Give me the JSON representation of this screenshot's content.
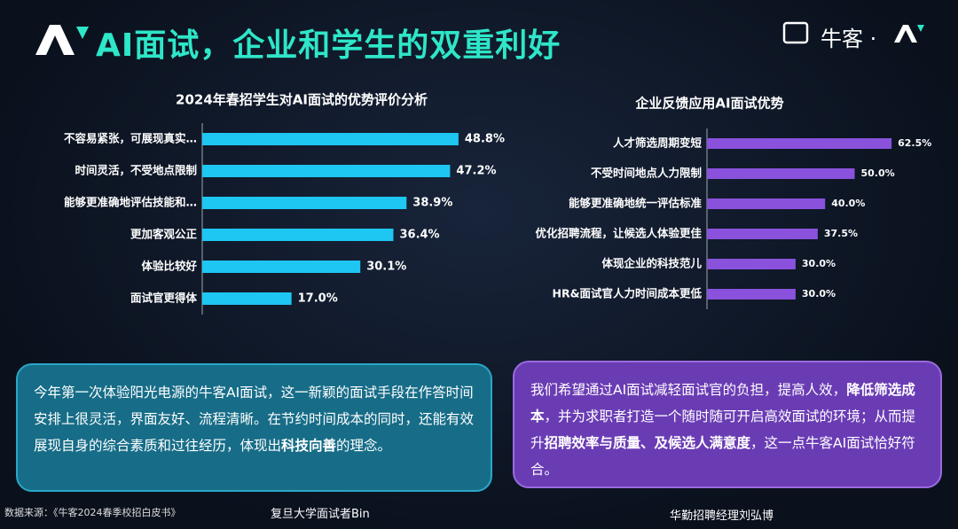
{
  "header": {
    "title": "AI面试，企业和学生的双重利好",
    "brand": "牛客 ·"
  },
  "chart_data": [
    {
      "type": "bar",
      "orientation": "horizontal",
      "title": "2024年春招学生对AI面试的优势评价分析",
      "color": "#1ec6f2",
      "categories": [
        "不容易紧张，可展现真实…",
        "时间灵活，不受地点限制",
        "能够更准确地评估技能和…",
        "更加客观公正",
        "体验比较好",
        "面试官更得体"
      ],
      "values": [
        48.8,
        47.2,
        38.9,
        36.4,
        30.1,
        17.0
      ],
      "value_labels": [
        "48.8%",
        "47.2%",
        "38.9%",
        "36.4%",
        "30.1%",
        "17.0%"
      ]
    },
    {
      "type": "bar",
      "orientation": "horizontal",
      "title": "企业反馈应用AI面试优势",
      "color": "#8a52dc",
      "categories": [
        "人才筛选周期变短",
        "不受时间地点人力限制",
        "能够更准确地统一评估标准",
        "优化招聘流程，让候选人体验更佳",
        "体现企业的科技范儿",
        "HR&面试官人力时间成本更低"
      ],
      "values": [
        62.5,
        50.0,
        40.0,
        37.5,
        30.0,
        30.0
      ],
      "value_labels": [
        "62.5%",
        "50.0%",
        "40.0%",
        "37.5%",
        "30.0%",
        "30.0%"
      ]
    }
  ],
  "quotes": [
    {
      "parts": [
        {
          "text": "今年第一次体验阳光电源的牛客AI面试，这一新颖的面试手段在作答时间安排上很灵活，界面友好、流程清晰。在节约时间成本的同时，还能有效展现自身的综合素质和过往经历，体现出",
          "bold": false
        },
        {
          "text": "科技向善",
          "bold": true
        },
        {
          "text": "的理念。",
          "bold": false
        }
      ],
      "author": "复旦大学面试者Bin"
    },
    {
      "parts": [
        {
          "text": "我们希望通过AI面试减轻面试官的负担，提高人效，",
          "bold": false
        },
        {
          "text": "降低筛选成本",
          "bold": true
        },
        {
          "text": "，并为求职者打造一个随时随可开启高效面试的环境；从而提升",
          "bold": false
        },
        {
          "text": "招聘效率与质量、及候选人满意度",
          "bold": true
        },
        {
          "text": "，这一点牛客AI面试恰好符合。",
          "bold": false
        }
      ],
      "author": "华勤招聘经理刘弘博"
    }
  ],
  "source": "数据来源：《牛客2024春季校招白皮书》"
}
